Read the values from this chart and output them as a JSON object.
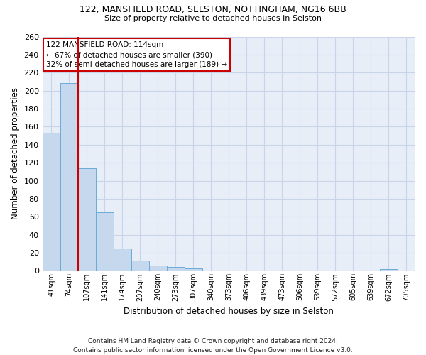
{
  "title_line1": "122, MANSFIELD ROAD, SELSTON, NOTTINGHAM, NG16 6BB",
  "title_line2": "Size of property relative to detached houses in Selston",
  "xlabel": "Distribution of detached houses by size in Selston",
  "ylabel": "Number of detached properties",
  "footer": "Contains HM Land Registry data © Crown copyright and database right 2024.\nContains public sector information licensed under the Open Government Licence v3.0.",
  "bin_labels": [
    "41sqm",
    "74sqm",
    "107sqm",
    "141sqm",
    "174sqm",
    "207sqm",
    "240sqm",
    "273sqm",
    "307sqm",
    "340sqm",
    "373sqm",
    "406sqm",
    "439sqm",
    "473sqm",
    "506sqm",
    "539sqm",
    "572sqm",
    "605sqm",
    "639sqm",
    "672sqm",
    "705sqm"
  ],
  "bar_values": [
    153,
    208,
    114,
    65,
    25,
    11,
    6,
    4,
    3,
    0,
    0,
    0,
    0,
    0,
    0,
    0,
    0,
    0,
    0,
    2,
    0
  ],
  "bar_color": "#c5d8ee",
  "bar_edge_color": "#6aacd8",
  "grid_color": "#c8d4e8",
  "background_color": "#e8eef8",
  "red_line_color": "#cc0000",
  "annotation_text": "122 MANSFIELD ROAD: 114sqm\n← 67% of detached houses are smaller (390)\n32% of semi-detached houses are larger (189) →",
  "annotation_box_color": "#ffffff",
  "annotation_border_color": "#cc0000",
  "ylim": [
    0,
    260
  ],
  "yticks": [
    0,
    20,
    40,
    60,
    80,
    100,
    120,
    140,
    160,
    180,
    200,
    220,
    240,
    260
  ]
}
